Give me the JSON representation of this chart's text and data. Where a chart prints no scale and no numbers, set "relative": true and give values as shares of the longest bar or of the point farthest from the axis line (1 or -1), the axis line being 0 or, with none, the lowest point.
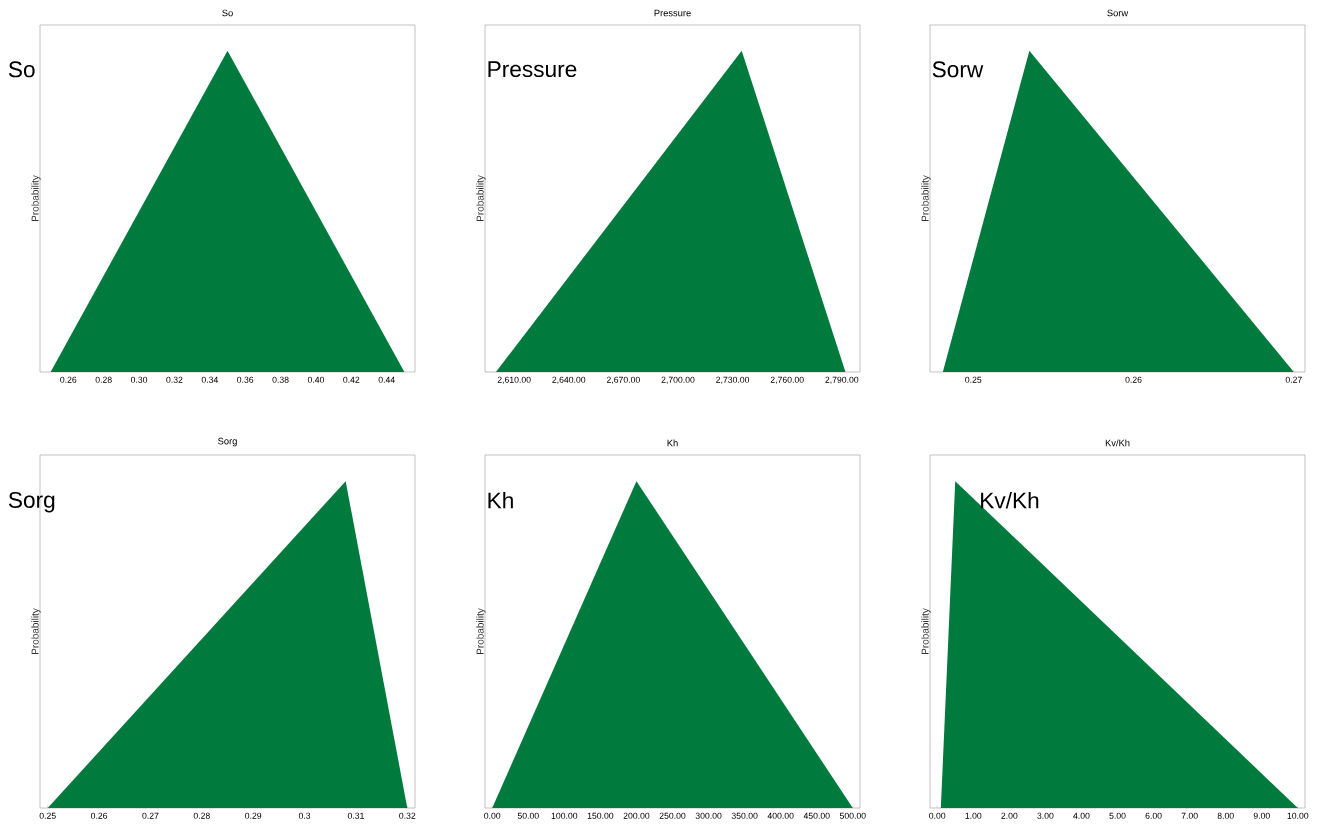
{
  "chart_data": [
    {
      "type": "area",
      "title": "So",
      "ylabel": "Probability",
      "annotations": [
        "So"
      ],
      "x": [
        0.25,
        0.35,
        0.45
      ],
      "values": [
        0,
        1,
        0
      ],
      "color": "#007a3d",
      "relative": true,
      "tick_labels": "x",
      "xlim": [
        0.244,
        0.456
      ],
      "xticks": [
        {
          "value": 0.26,
          "label": "0.26"
        },
        {
          "value": 0.28,
          "label": "0.28"
        },
        {
          "value": 0.3,
          "label": "0.30"
        },
        {
          "value": 0.32,
          "label": "0.32"
        },
        {
          "value": 0.34,
          "label": "0.34"
        },
        {
          "value": 0.36,
          "label": "0.36"
        },
        {
          "value": 0.38,
          "label": "0.38"
        },
        {
          "value": 0.4,
          "label": "0.40"
        },
        {
          "value": 0.42,
          "label": "0.42"
        },
        {
          "value": 0.44,
          "label": "0.44"
        }
      ]
    },
    {
      "type": "area",
      "title": "Pressure",
      "ylabel": "Probability",
      "annotations": [
        "Pressure"
      ],
      "x": [
        2600,
        2735,
        2792
      ],
      "values": [
        0,
        1,
        0
      ],
      "color": "#007a3d",
      "relative": true,
      "tick_labels": "x",
      "xlim": [
        2594,
        2800
      ],
      "xticks": [
        {
          "value": 2610,
          "label": "2,610.00"
        },
        {
          "value": 2640,
          "label": "2,640.00"
        },
        {
          "value": 2670,
          "label": "2,670.00"
        },
        {
          "value": 2700,
          "label": "2,700.00"
        },
        {
          "value": 2730,
          "label": "2,730.00"
        },
        {
          "value": 2760,
          "label": "2,760.00"
        },
        {
          "value": 2790,
          "label": "2,790.00"
        }
      ]
    },
    {
      "type": "area",
      "title": "Sorw",
      "ylabel": "Probability",
      "annotations": [
        "Sorw"
      ],
      "x": [
        0.2481,
        0.2535,
        0.27
      ],
      "values": [
        0,
        1,
        0
      ],
      "color": "#007a3d",
      "relative": true,
      "tick_labels": "x",
      "xlim": [
        0.2473,
        0.2707
      ],
      "xticks": [
        0.25,
        0.26,
        0.27
      ]
    },
    {
      "type": "area",
      "title": "Sorg",
      "ylabel": "Probability",
      "annotations": [
        "Sorg"
      ],
      "x": [
        0.25,
        0.308,
        0.32
      ],
      "values": [
        0,
        1,
        0
      ],
      "color": "#007a3d",
      "relative": true,
      "tick_labels": "x",
      "xlim": [
        0.2485,
        0.3215
      ],
      "xticks": [
        0.25,
        0.26,
        0.27,
        0.28,
        0.29,
        0.3,
        0.31,
        0.32
      ]
    },
    {
      "type": "area",
      "title": "Kh",
      "ylabel": "Probability",
      "annotations": [
        "Kh"
      ],
      "x": [
        0,
        200,
        500
      ],
      "values": [
        0,
        1,
        0
      ],
      "color": "#007a3d",
      "relative": true,
      "tick_labels": "x",
      "xlim": [
        -10,
        510
      ],
      "xticks": [
        {
          "value": 0,
          "label": "0.00"
        },
        {
          "value": 50,
          "label": "50.00"
        },
        {
          "value": 100,
          "label": "100.00"
        },
        {
          "value": 150,
          "label": "150.00"
        },
        {
          "value": 200,
          "label": "200.00"
        },
        {
          "value": 250,
          "label": "250.00"
        },
        {
          "value": 300,
          "label": "300.00"
        },
        {
          "value": 350,
          "label": "350.00"
        },
        {
          "value": 400,
          "label": "400.00"
        },
        {
          "value": 450,
          "label": "450.00"
        },
        {
          "value": 500,
          "label": "500.00"
        }
      ]
    },
    {
      "type": "area",
      "title": "Kv/Kh",
      "ylabel": "Probability",
      "annotations": [
        "Kv/Kh"
      ],
      "x": [
        0.1,
        0.5,
        10
      ],
      "values": [
        0,
        1,
        0
      ],
      "color": "#007a3d",
      "relative": true,
      "tick_labels": "x",
      "xlim": [
        -0.2,
        10.2
      ],
      "xticks": [
        {
          "value": 0,
          "label": "0.00"
        },
        {
          "value": 1,
          "label": "1.00"
        },
        {
          "value": 2,
          "label": "2.00"
        },
        {
          "value": 3,
          "label": "3.00"
        },
        {
          "value": 4,
          "label": "4.00"
        },
        {
          "value": 5,
          "label": "5.00"
        },
        {
          "value": 6,
          "label": "6.00"
        },
        {
          "value": 7,
          "label": "7.00"
        },
        {
          "value": 8,
          "label": "8.00"
        },
        {
          "value": 9,
          "label": "9.00"
        },
        {
          "value": 10,
          "label": "10.00"
        }
      ]
    }
  ]
}
